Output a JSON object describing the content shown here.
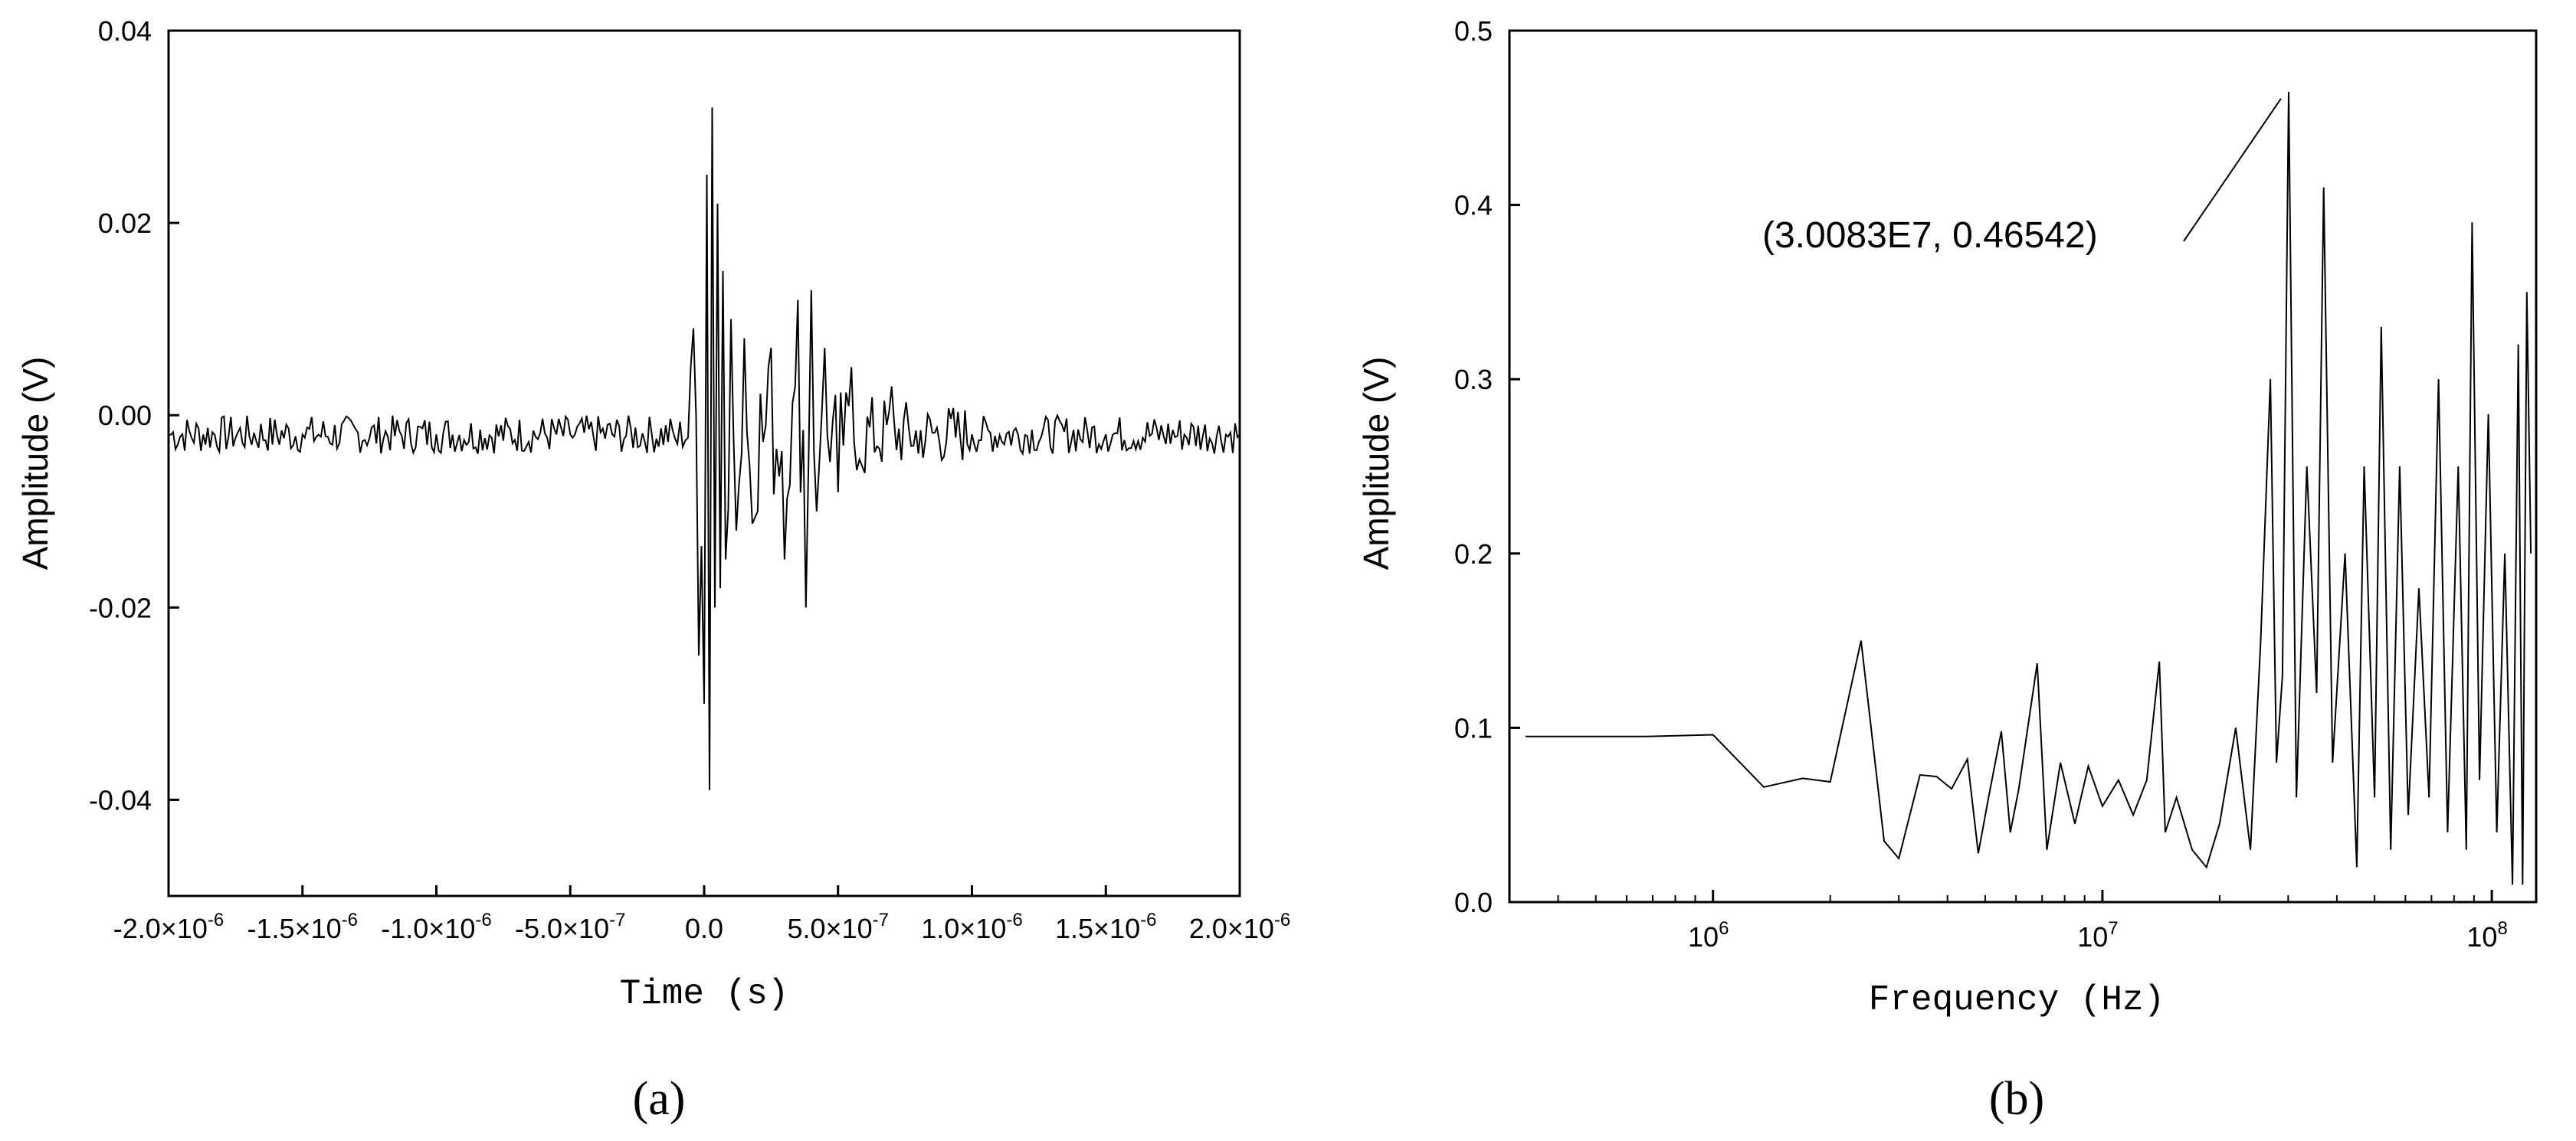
{
  "chart_data": [
    {
      "type": "line",
      "panel_label": "(a)",
      "xlabel": "Time (s)",
      "ylabel": "Amplitude (V)",
      "xlim": [
        -2e-06,
        2e-06
      ],
      "ylim": [
        -0.05,
        0.04
      ],
      "xticks": [
        -2e-06,
        -1.5e-06,
        -1e-06,
        -5e-07,
        0.0,
        5e-07,
        1e-06,
        1.5e-06,
        2e-06
      ],
      "xtick_labels": [
        "-2.0×10",
        "-1.5×10",
        "-1.0×10",
        "-5.0×10",
        "0.0",
        "5.0×10",
        "1.0×10",
        "1.5×10",
        "2.0×10"
      ],
      "xtick_exponents": [
        "-6",
        "-6",
        "-6",
        "-7",
        "",
        "-7",
        "-6",
        "-6",
        "-6"
      ],
      "yticks": [
        0.04,
        0.02,
        0.0,
        -0.02,
        -0.04
      ],
      "ytick_labels": [
        "0.04",
        "0.02",
        "0.00",
        "-0.02",
        "-0.04"
      ],
      "grid": false,
      "legend": "none",
      "series": [
        {
          "x": [
            -2e-06,
            -1.5e-06,
            -1e-06,
            -5e-07,
            -1e-07,
            -5e-08,
            -2e-08,
            0.0,
            1e-08,
            2e-08,
            3e-08,
            4e-08,
            5e-08,
            6e-08,
            7e-08,
            8e-08,
            1e-07,
            1.2e-07,
            1.5e-07,
            2e-07,
            2.5e-07,
            3e-07,
            3.5e-07,
            3.8e-07,
            4e-07,
            4.2e-07,
            4.5e-07,
            5e-07,
            5.5e-07,
            6e-07,
            7e-07,
            8e-07,
            1e-06,
            1.5e-06,
            2e-06
          ],
          "y": [
            -0.002,
            -0.002,
            -0.002,
            -0.002,
            -0.003,
            0.005,
            -0.025,
            -0.03,
            0.025,
            -0.039,
            0.032,
            -0.02,
            0.022,
            -0.018,
            0.015,
            -0.015,
            0.01,
            -0.012,
            0.008,
            -0.01,
            0.007,
            -0.015,
            0.012,
            -0.02,
            0.013,
            -0.01,
            0.007,
            -0.008,
            0.005,
            -0.006,
            0.003,
            -0.004,
            -0.002,
            -0.002,
            -0.002
          ]
        }
      ]
    },
    {
      "type": "line",
      "panel_label": "(b)",
      "xlabel": "Frequency (Hz)",
      "ylabel": "Amplitude (V)",
      "xscale": "log",
      "xlim": [
        300000.0,
        130000000.0
      ],
      "ylim": [
        0.0,
        0.5
      ],
      "xticks": [
        1000000.0,
        10000000.0,
        100000000.0
      ],
      "xtick_labels": [
        "10",
        "10",
        "10"
      ],
      "xtick_exponents": [
        "6",
        "7",
        "8"
      ],
      "yticks": [
        0.0,
        0.1,
        0.2,
        0.3,
        0.4,
        0.5
      ],
      "ytick_labels": [
        "0.0",
        "0.1",
        "0.2",
        "0.3",
        "0.4",
        "0.5"
      ],
      "grid": false,
      "legend": "none",
      "annotation": {
        "text": "(3.0083E7, 0.46542)",
        "x": 30083000.0,
        "y": 0.46542
      },
      "series": [
        {
          "x": [
            330000.0,
            670000.0,
            1000000.0,
            1350000.0,
            1700000.0,
            2000000.0,
            2400000.0,
            2750000.0,
            3000000.0,
            3400000.0,
            3750000.0,
            4100000.0,
            4500000.0,
            4800000.0,
            5100000.0,
            5500000.0,
            5800000.0,
            6100000.0,
            6800000.0,
            7200000.0,
            7800000.0,
            8500000.0,
            9200000.0,
            10000000.0,
            11000000.0,
            12000000.0,
            13000000.0,
            14000000.0,
            14500000.0,
            15500000.0,
            17000000.0,
            18500000.0,
            20000000.0,
            22000000.0,
            24000000.0,
            25500000.0,
            27000000.0,
            28000000.0,
            29000000.0,
            30083000.0,
            31500000.0,
            33500000.0,
            35500000.0,
            37000000.0,
            39000000.0,
            42000000.0,
            45000000.0,
            47000000.0,
            50000000.0,
            52000000.0,
            55000000.0,
            58000000.0,
            61000000.0,
            65000000.0,
            69000000.0,
            73000000.0,
            77000000.0,
            82000000.0,
            86000000.0,
            89000000.0,
            93000000.0,
            98000000.0,
            103000000.0,
            108000000.0,
            113000000.0,
            117000000.0,
            120000000.0,
            123000000.0,
            126000000.0
          ],
          "y": [
            0.095,
            0.095,
            0.096,
            0.066,
            0.071,
            0.069,
            0.15,
            0.035,
            0.025,
            0.073,
            0.072,
            0.065,
            0.082,
            0.028,
            0.06,
            0.098,
            0.04,
            0.065,
            0.137,
            0.03,
            0.08,
            0.045,
            0.078,
            0.055,
            0.07,
            0.05,
            0.07,
            0.138,
            0.04,
            0.06,
            0.03,
            0.02,
            0.045,
            0.1,
            0.03,
            0.15,
            0.3,
            0.08,
            0.13,
            0.465,
            0.06,
            0.25,
            0.12,
            0.41,
            0.08,
            0.2,
            0.02,
            0.25,
            0.06,
            0.33,
            0.03,
            0.25,
            0.05,
            0.18,
            0.06,
            0.3,
            0.04,
            0.25,
            0.03,
            0.39,
            0.07,
            0.28,
            0.04,
            0.2,
            0.01,
            0.32,
            0.01,
            0.35,
            0.2
          ]
        }
      ]
    }
  ]
}
